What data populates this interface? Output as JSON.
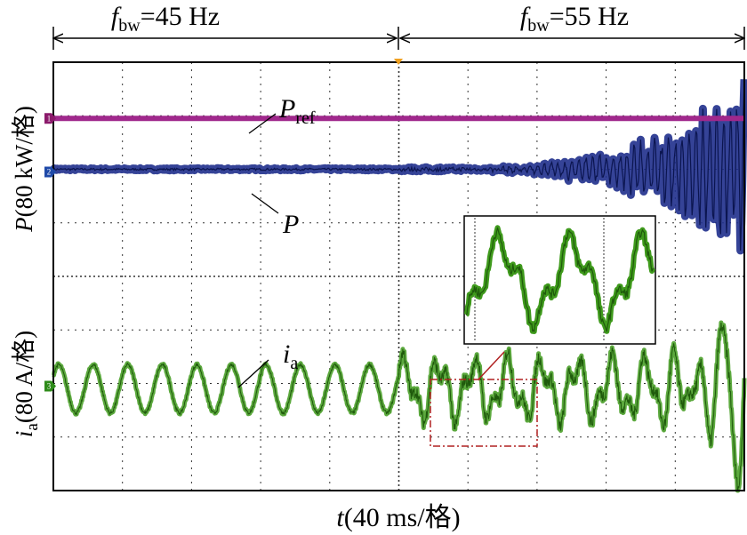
{
  "chart_data": {
    "type": "line",
    "title": "",
    "xlabel": {
      "var": "t",
      "unit": "(40 ms/格)"
    },
    "ylabel_top": {
      "var": "P",
      "unit": "(80 kW/格)"
    },
    "ylabel_bottom": {
      "var": "i",
      "sub": "a",
      "unit": "(80 A/格)"
    },
    "segments": [
      {
        "label_var": "f",
        "label_sub": "bw",
        "label_value": "=45 Hz",
        "x_start": 0,
        "x_end": 5
      },
      {
        "label_var": "f",
        "label_sub": "bw",
        "label_value": "=55 Hz",
        "x_start": 5,
        "x_end": 10
      }
    ],
    "xlim": [
      0,
      10
    ],
    "ylim": [
      0,
      8
    ],
    "divisions": {
      "x": 10,
      "y": 8
    },
    "trigger_x": 5,
    "channel_markers": [
      {
        "id": "1",
        "level": 6.95,
        "color": "#8b1a6b"
      },
      {
        "id": "2",
        "level": 5.95,
        "color": "#1f4aa8"
      },
      {
        "id": "3",
        "level": 1.95,
        "color": "#2e8b1a"
      }
    ],
    "series": [
      {
        "name": "Pref",
        "label_var": "P",
        "label_sub": "ref",
        "color": "#a0288c",
        "level": 6.95,
        "behavior": "constant"
      },
      {
        "name": "P",
        "label_var": "P",
        "label_sub": "",
        "color": "#1f2f8c",
        "level": 6.0,
        "behavior": "stable until x=5, growing oscillation after x=5"
      },
      {
        "name": "ia",
        "label_var": "i",
        "label_sub": "a",
        "color": "#3f9a1c",
        "level": 1.9,
        "amplitude_div": 0.45,
        "cycles_first_segment": 10,
        "behavior": "sinusoidal 50 Hz until x=5, distorted then unstable after x=5"
      }
    ],
    "inset": {
      "description": "zoom of ia in dashed window",
      "window_x": [
        5.85,
        7.35
      ]
    }
  },
  "channel_ids": {
    "c1": "1",
    "c2": "2",
    "c3": "3"
  },
  "colors": {
    "grid": "#333333",
    "frame": "#000000",
    "inset_box": "#b02020"
  }
}
